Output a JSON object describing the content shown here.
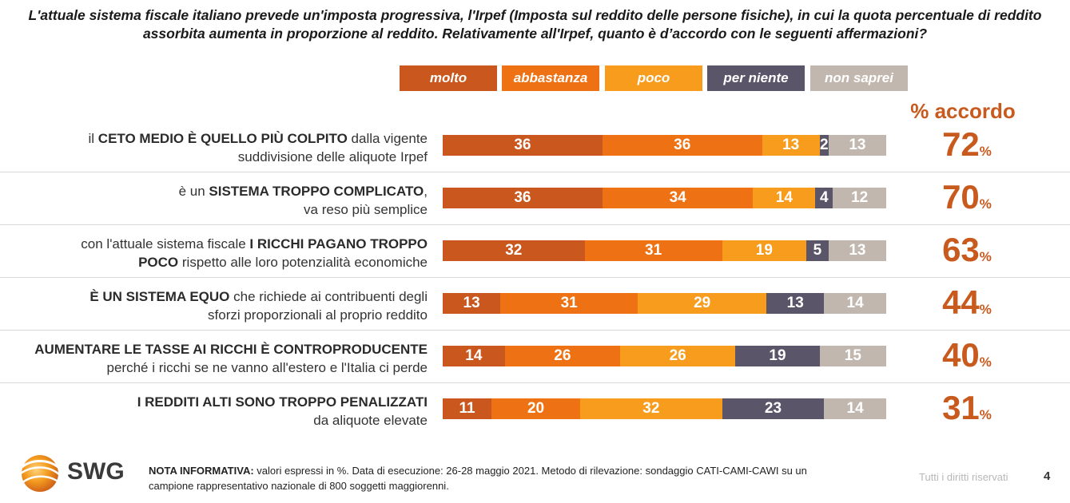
{
  "title": {
    "line1": "L'attuale sistema fiscale italiano prevede un'imposta progressiva, l'Irpef (Imposta sul reddito delle persone fisiche), in cui la quota percentuale di reddito",
    "line2": "assorbita aumenta in proporzione al reddito. Relativamente all'Irpef, quanto è d’accordo con le seguenti affermazioni?"
  },
  "accordo_header": "% accordo",
  "colors": {
    "molto": "#c9571e",
    "abbastanza": "#ee7214",
    "poco": "#f79c1c",
    "per_niente": "#5a5568",
    "non_saprei": "#c1b7ae",
    "accent": "#c85a1e"
  },
  "chart_data": {
    "type": "bar",
    "orientation": "horizontal",
    "stacked": true,
    "legend_position": "top",
    "xlim": [
      0,
      100
    ],
    "series_names": [
      "molto",
      "abbastanza",
      "poco",
      "per niente",
      "non saprei"
    ],
    "rows": [
      {
        "label_parts": [
          {
            "t": "il ",
            "b": false
          },
          {
            "t": "CETO MEDIO È QUELLO PIÙ COLPITO",
            "b": true
          },
          {
            "t": " dalla vigente",
            "b": false
          },
          {
            "br": true
          },
          {
            "t": "suddivisione delle aliquote Irpef",
            "b": false
          }
        ],
        "values": [
          36,
          36,
          13,
          2,
          13
        ],
        "accordo": "72"
      },
      {
        "label_parts": [
          {
            "t": "è un ",
            "b": false
          },
          {
            "t": "SISTEMA TROPPO COMPLICATO",
            "b": true
          },
          {
            "t": ",",
            "b": false
          },
          {
            "br": true
          },
          {
            "t": "va reso più semplice",
            "b": false
          }
        ],
        "values": [
          36,
          34,
          14,
          4,
          12
        ],
        "accordo": "70"
      },
      {
        "label_parts": [
          {
            "t": "con l'attuale sistema fiscale ",
            "b": false
          },
          {
            "t": "I RICCHI PAGANO TROPPO",
            "b": true
          },
          {
            "br": true
          },
          {
            "t": "POCO",
            "b": true
          },
          {
            "t": " rispetto alle loro potenzialità economiche",
            "b": false
          }
        ],
        "values": [
          32,
          31,
          19,
          5,
          13
        ],
        "accordo": "63"
      },
      {
        "label_parts": [
          {
            "t": "È UN SISTEMA EQUO",
            "b": true
          },
          {
            "t": " che richiede ai contribuenti degli",
            "b": false
          },
          {
            "br": true
          },
          {
            "t": "sforzi proporzionali al proprio reddito",
            "b": false
          }
        ],
        "values": [
          13,
          31,
          29,
          13,
          14
        ],
        "accordo": "44"
      },
      {
        "label_parts": [
          {
            "t": "AUMENTARE LE TASSE AI RICCHI È CONTROPRODUCENTE",
            "b": true
          },
          {
            "br": true
          },
          {
            "t": "perché i ricchi se ne vanno all'estero e l'Italia ci perde",
            "b": false
          }
        ],
        "values": [
          14,
          26,
          26,
          19,
          15
        ],
        "accordo": "40"
      },
      {
        "label_parts": [
          {
            "t": "I REDDITI ALTI SONO TROPPO PENALIZZATI",
            "b": true
          },
          {
            "br": true
          },
          {
            "t": "da aliquote elevate",
            "b": false
          }
        ],
        "values": [
          11,
          20,
          32,
          23,
          14
        ],
        "accordo": "31"
      }
    ],
    "pct_symbol": "%"
  },
  "footer": {
    "logo_text": "SWG",
    "logo_icon": "swg-globe-icon",
    "note_label": "NOTA INFORMATIVA:",
    "note_text": " valori espressi in %. Data di esecuzione: 26-28 maggio 2021. Metodo di rilevazione: sondaggio CATI-CAMI-CAWI su un campione rappresentativo nazionale di 800 soggetti maggiorenni.",
    "rights": "Tutti i diritti riservati",
    "page_number": "4"
  }
}
